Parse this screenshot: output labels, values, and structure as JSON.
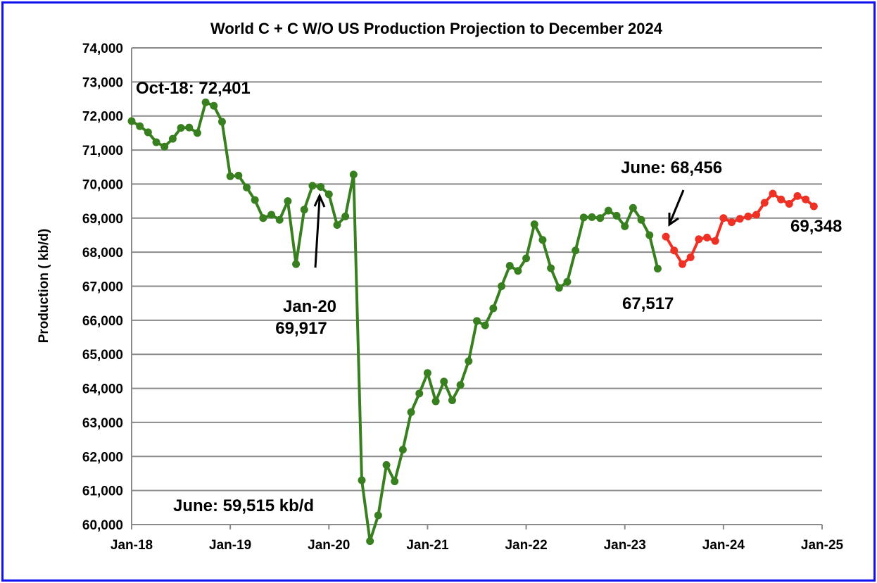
{
  "chart_data": {
    "type": "line",
    "title": "World C + C W/O US Production Projection to December 2024",
    "xlabel": "",
    "ylabel": "Production ( kb/d)",
    "ylim": [
      60000,
      74000
    ],
    "yticks": [
      "60,000",
      "61,000",
      "62,000",
      "63,000",
      "64,000",
      "65,000",
      "66,000",
      "67,000",
      "68,000",
      "69,000",
      "70,000",
      "71,000",
      "72,000",
      "73,000",
      "74,000"
    ],
    "xlim": [
      "Jan-18",
      "Jan-25"
    ],
    "xticks": [
      "Jan-18",
      "Jan-19",
      "Jan-20",
      "Jan-21",
      "Jan-22",
      "Jan-23",
      "Jan-24",
      "Jan-25"
    ],
    "grid": "horizontal",
    "series": [
      {
        "color": "#38801f",
        "start": "Jan-18",
        "values": [
          71850,
          71700,
          71520,
          71230,
          71100,
          71330,
          71650,
          71660,
          71500,
          72401,
          72300,
          71830,
          70230,
          70250,
          69900,
          69530,
          69000,
          69100,
          68950,
          69500,
          67650,
          69250,
          69950,
          69917,
          69700,
          68800,
          69050,
          70280,
          61300,
          59515,
          60270,
          61750,
          61270,
          62200,
          63300,
          63850,
          64450,
          63620,
          64200,
          63650,
          64100,
          64800,
          65980,
          65850,
          66350,
          67000,
          67600,
          67450,
          67820,
          68820,
          68360,
          67530,
          66950,
          67130,
          68050,
          69020,
          69030,
          69000,
          69220,
          69070,
          68760,
          69300,
          68950,
          68500,
          67517
        ]
      },
      {
        "color": "#ee3124",
        "start": "Jun-23",
        "values": [
          68456,
          68050,
          67650,
          67850,
          68380,
          68430,
          68330,
          69000,
          68880,
          68980,
          69050,
          69100,
          69450,
          69720,
          69550,
          69420,
          69650,
          69550,
          69348
        ]
      }
    ],
    "annotations": {
      "peak": "Oct-18: 72,401",
      "jan20_a": "Jan-20",
      "jan20_b": "69,917",
      "low": "June: 59,515 kb/d",
      "june23": "June: 68,456",
      "last_actual": "67,517",
      "end": "69,348"
    }
  }
}
